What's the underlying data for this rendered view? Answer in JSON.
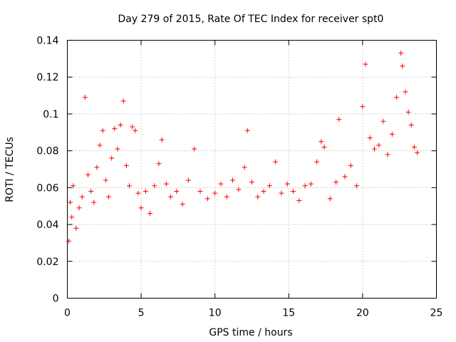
{
  "chart_data": {
    "type": "scatter",
    "title": "Day 279 of 2015, Rate Of TEC Index for receiver spt0",
    "xlabel": "GPS time / hours",
    "ylabel": "ROTI / TECUs",
    "xlim": [
      0,
      25
    ],
    "ylim": [
      0,
      0.14
    ],
    "xticks": [
      0,
      5,
      10,
      15,
      20,
      25
    ],
    "xtick_labels": [
      "0",
      "5",
      "10",
      "15",
      "20",
      "25"
    ],
    "yticks": [
      0,
      0.02,
      0.04,
      0.06,
      0.08,
      0.1,
      0.12,
      0.14
    ],
    "ytick_labels": [
      "0",
      "0.02",
      "0.04",
      "0.06",
      "0.08",
      "0.1",
      "0.12",
      "0.14"
    ],
    "grid": true,
    "marker": "+",
    "marker_color": "#ff0000",
    "series": [
      {
        "name": "ROTI",
        "points": [
          [
            0.1,
            0.031
          ],
          [
            0.2,
            0.052
          ],
          [
            0.3,
            0.044
          ],
          [
            0.4,
            0.061
          ],
          [
            0.6,
            0.038
          ],
          [
            0.8,
            0.049
          ],
          [
            1.0,
            0.055
          ],
          [
            1.2,
            0.109
          ],
          [
            1.4,
            0.067
          ],
          [
            1.6,
            0.058
          ],
          [
            1.8,
            0.052
          ],
          [
            2.0,
            0.071
          ],
          [
            2.2,
            0.083
          ],
          [
            2.4,
            0.091
          ],
          [
            2.6,
            0.064
          ],
          [
            2.8,
            0.055
          ],
          [
            3.0,
            0.076
          ],
          [
            3.2,
            0.092
          ],
          [
            3.4,
            0.081
          ],
          [
            3.6,
            0.094
          ],
          [
            3.8,
            0.107
          ],
          [
            4.0,
            0.072
          ],
          [
            4.2,
            0.061
          ],
          [
            4.4,
            0.093
          ],
          [
            4.6,
            0.091
          ],
          [
            4.8,
            0.057
          ],
          [
            5.0,
            0.049
          ],
          [
            5.3,
            0.058
          ],
          [
            5.6,
            0.046
          ],
          [
            5.9,
            0.061
          ],
          [
            6.2,
            0.073
          ],
          [
            6.4,
            0.086
          ],
          [
            6.7,
            0.062
          ],
          [
            7.0,
            0.055
          ],
          [
            7.4,
            0.058
          ],
          [
            7.8,
            0.051
          ],
          [
            8.2,
            0.064
          ],
          [
            8.6,
            0.081
          ],
          [
            9.0,
            0.058
          ],
          [
            9.5,
            0.054
          ],
          [
            10.0,
            0.057
          ],
          [
            10.4,
            0.062
          ],
          [
            10.8,
            0.055
          ],
          [
            11.2,
            0.064
          ],
          [
            11.6,
            0.059
          ],
          [
            12.0,
            0.071
          ],
          [
            12.2,
            0.091
          ],
          [
            12.5,
            0.063
          ],
          [
            12.9,
            0.055
          ],
          [
            13.3,
            0.058
          ],
          [
            13.7,
            0.061
          ],
          [
            14.1,
            0.074
          ],
          [
            14.5,
            0.057
          ],
          [
            14.9,
            0.062
          ],
          [
            15.3,
            0.058
          ],
          [
            15.7,
            0.053
          ],
          [
            16.1,
            0.061
          ],
          [
            16.5,
            0.062
          ],
          [
            16.9,
            0.074
          ],
          [
            17.2,
            0.085
          ],
          [
            17.4,
            0.082
          ],
          [
            17.8,
            0.054
          ],
          [
            18.2,
            0.063
          ],
          [
            18.4,
            0.097
          ],
          [
            18.8,
            0.066
          ],
          [
            19.2,
            0.072
          ],
          [
            19.6,
            0.061
          ],
          [
            20.0,
            0.104
          ],
          [
            20.2,
            0.127
          ],
          [
            20.5,
            0.087
          ],
          [
            20.8,
            0.081
          ],
          [
            21.1,
            0.083
          ],
          [
            21.4,
            0.096
          ],
          [
            21.7,
            0.078
          ],
          [
            22.0,
            0.089
          ],
          [
            22.3,
            0.109
          ],
          [
            22.6,
            0.133
          ],
          [
            22.7,
            0.126
          ],
          [
            22.9,
            0.112
          ],
          [
            23.1,
            0.101
          ],
          [
            23.3,
            0.094
          ],
          [
            23.5,
            0.082
          ],
          [
            23.7,
            0.079
          ]
        ]
      }
    ]
  }
}
